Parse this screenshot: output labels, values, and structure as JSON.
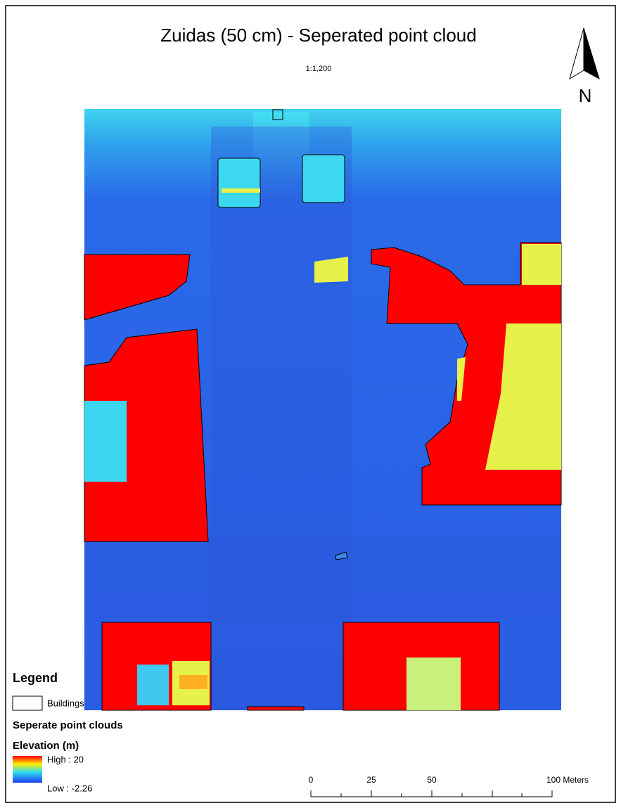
{
  "title": "Zuidas (50 cm) - Seperated point cloud",
  "scale": "1:1,200",
  "north_label": "N",
  "legend": {
    "title": "Legend",
    "buildings": "Buildings",
    "layer": "Seperate point clouds",
    "field": "Elevation (m)",
    "high": "High : 20",
    "low": "Low : -2.26"
  },
  "scale_bar": {
    "labels": [
      "0",
      "25",
      "50",
      "100 Meters"
    ]
  }
}
